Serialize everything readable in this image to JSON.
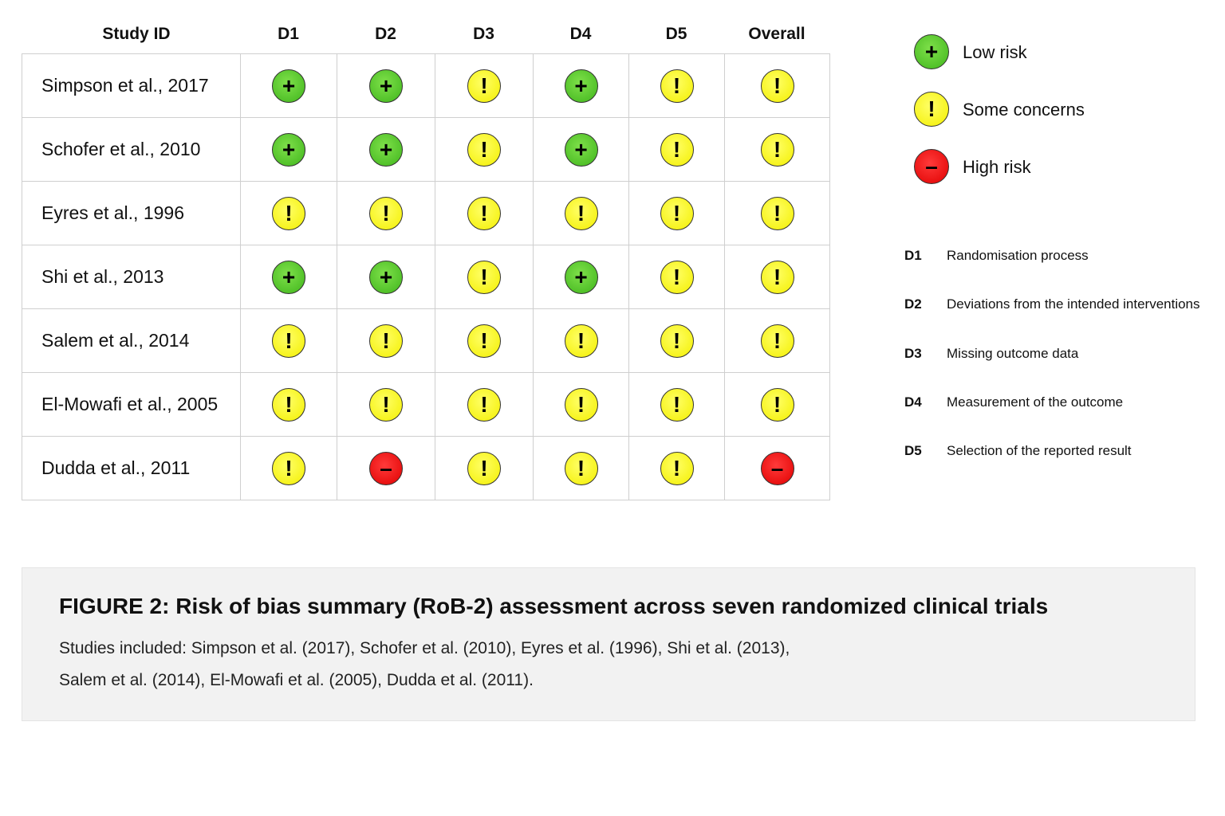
{
  "chart_data": {
    "type": "table",
    "columns": [
      "Study ID",
      "D1",
      "D2",
      "D3",
      "D4",
      "D5",
      "Overall"
    ],
    "rows": [
      {
        "study": "Simpson et al., 2017",
        "judgements": [
          "low",
          "low",
          "some",
          "low",
          "some",
          "some"
        ]
      },
      {
        "study": "Schofer et al., 2010",
        "judgements": [
          "low",
          "low",
          "some",
          "low",
          "some",
          "some"
        ]
      },
      {
        "study": "Eyres et al., 1996",
        "judgements": [
          "some",
          "some",
          "some",
          "some",
          "some",
          "some"
        ]
      },
      {
        "study": "Shi et al., 2013",
        "judgements": [
          "low",
          "low",
          "some",
          "low",
          "some",
          "some"
        ]
      },
      {
        "study": "Salem et al., 2014",
        "judgements": [
          "some",
          "some",
          "some",
          "some",
          "some",
          "some"
        ]
      },
      {
        "study": "El-Mowafi et al., 2005",
        "judgements": [
          "some",
          "some",
          "some",
          "some",
          "some",
          "some"
        ]
      },
      {
        "study": "Dudda et al., 2011",
        "judgements": [
          "some",
          "high",
          "some",
          "some",
          "some",
          "high"
        ]
      }
    ],
    "legend": [
      {
        "key": "low",
        "label": "Low risk",
        "symbol": "+",
        "color": "#4cc423"
      },
      {
        "key": "some",
        "label": "Some concerns",
        "symbol": "!",
        "color": "#ffff00"
      },
      {
        "key": "high",
        "label": "High risk",
        "symbol": "–",
        "color": "#ee0000"
      }
    ],
    "domains": [
      {
        "code": "D1",
        "description": "Randomisation process"
      },
      {
        "code": "D2",
        "description": "Deviations from the intended interventions"
      },
      {
        "code": "D3",
        "description": "Missing outcome data"
      },
      {
        "code": "D4",
        "description": "Measurement of the outcome"
      },
      {
        "code": "D5",
        "description": "Selection of the reported result"
      }
    ]
  },
  "caption": {
    "title": "FIGURE 2: Risk of bias summary (RoB-2) assessment across seven randomized clinical trials",
    "line1": "Studies included: Simpson et al. (2017), Schofer et al. (2010), Eyres et al. (1996), Shi et al. (2013),",
    "line2": "Salem et al. (2014), El-Mowafi et al. (2005), Dudda et al. (2011)."
  }
}
